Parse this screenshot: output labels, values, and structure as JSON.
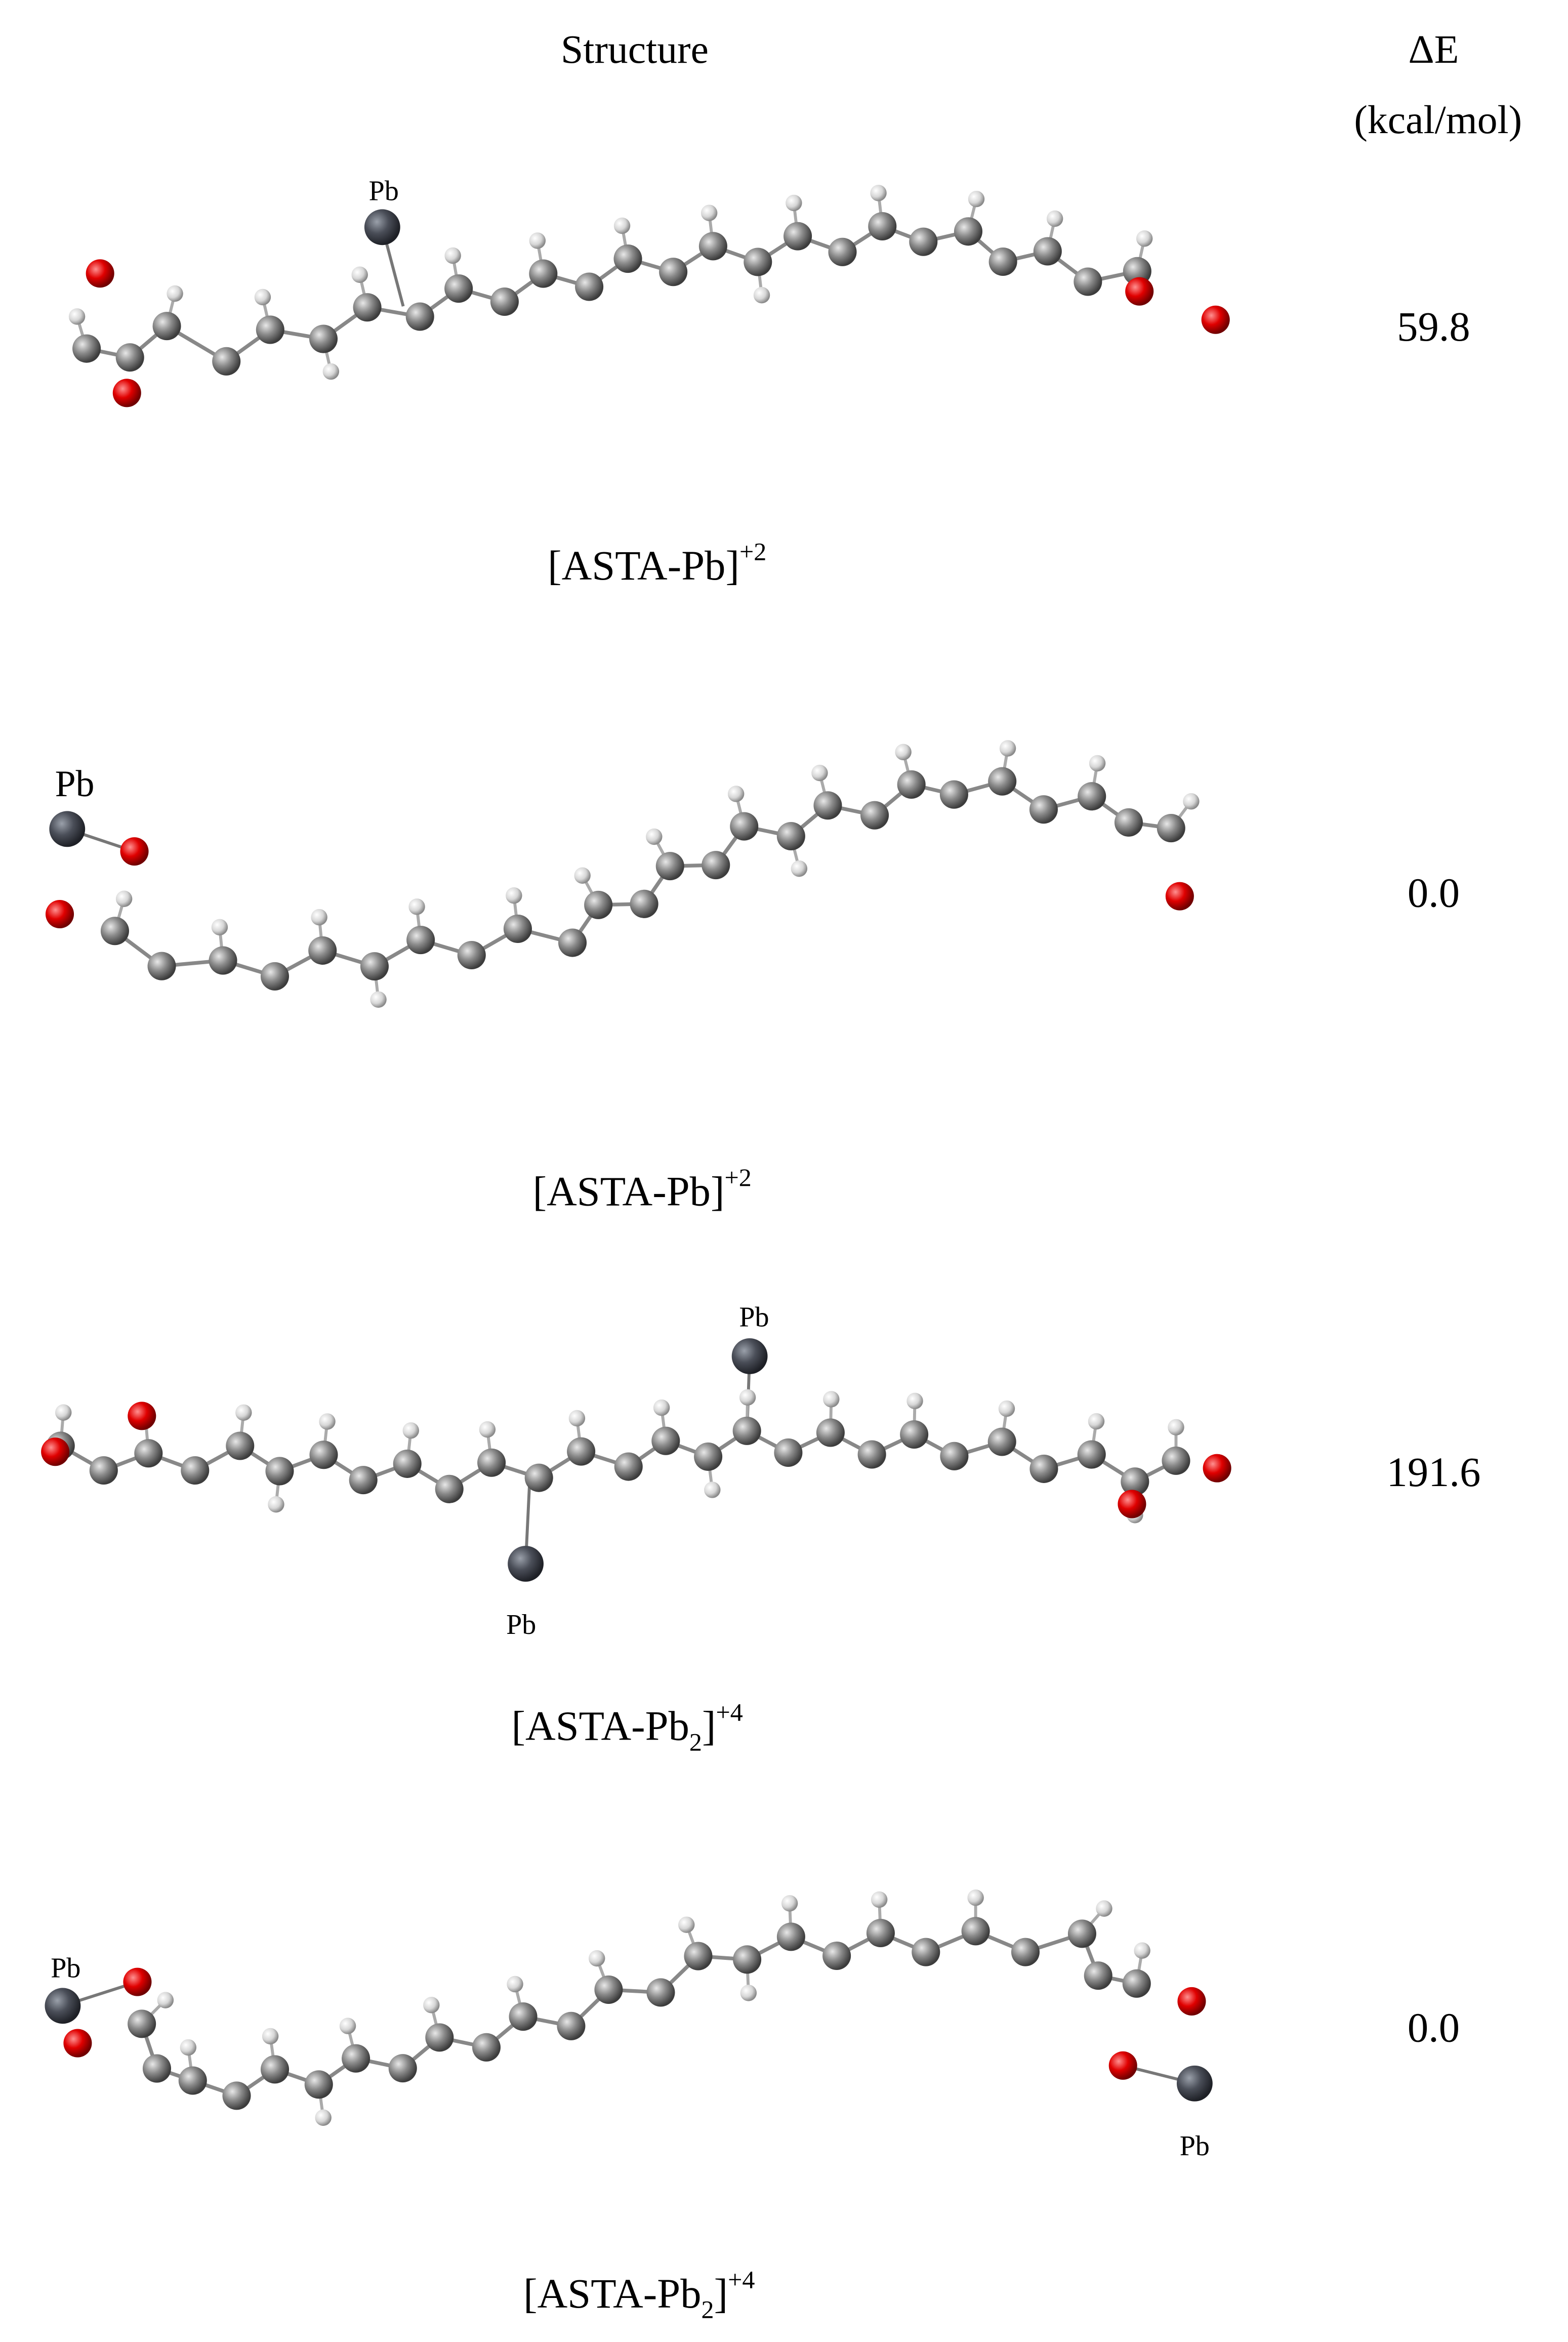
{
  "header": {
    "structure": "Structure",
    "delta_e": "ΔE",
    "unit": "(kcal/mol)"
  },
  "rows": [
    {
      "atom_labels": [
        "Pb"
      ],
      "energy": "59.8",
      "name": {
        "text": "[ASTA-Pb]",
        "charge": "+2"
      }
    },
    {
      "atom_labels": [
        "Pb"
      ],
      "energy": "0.0",
      "name": {
        "text": "[ASTA-Pb]",
        "charge": "+2"
      }
    },
    {
      "atom_labels": [
        "Pb",
        "Pb"
      ],
      "energy": "191.6",
      "name": {
        "text": "[ASTA-Pb",
        "subscript": "2",
        "close": "]",
        "charge": "+4"
      }
    },
    {
      "atom_labels": [
        "Pb",
        "Pb"
      ],
      "energy": "0.0",
      "name": {
        "text": "[ASTA-Pb",
        "subscript": "2",
        "close": "]",
        "charge": "+4"
      }
    }
  ]
}
